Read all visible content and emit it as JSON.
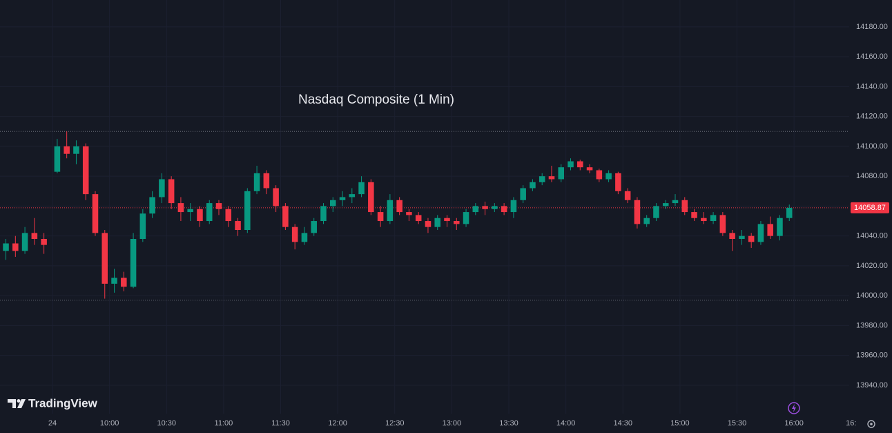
{
  "chart_data": {
    "type": "candlestick",
    "title": "Nasdaq Composite (1 Min)",
    "x": [
      545.5,
      550.5,
      555.5,
      560.5,
      565.5,
      572.5,
      577.5,
      582.5,
      587.5,
      592.5,
      597.5,
      602.5,
      607.5,
      612.5,
      617.5,
      622.5,
      627.5,
      632.5,
      637.5,
      642.5,
      647.5,
      652.5,
      657.5,
      662.5,
      667.5,
      672.5,
      677.5,
      682.5,
      687.5,
      692.5,
      697.5,
      702.5,
      707.5,
      712.5,
      717.5,
      722.5,
      727.5,
      732.5,
      737.5,
      742.5,
      747.5,
      752.5,
      757.5,
      762.5,
      767.5,
      772.5,
      777.5,
      782.5,
      787.5,
      792.5,
      797.5,
      802.5,
      807.5,
      812.5,
      817.5,
      822.5,
      827.5,
      832.5,
      837.5,
      842.5,
      847.5,
      852.5,
      857.5,
      862.5,
      867.5,
      872.5,
      877.5,
      882.5,
      887.5,
      892.5,
      897.5,
      902.5,
      907.5,
      912.5,
      917.5,
      922.5,
      927.5,
      932.5,
      937.5,
      942.5,
      947.5,
      952.5,
      957.5
    ],
    "open": [
      14030,
      14035,
      14030,
      14042,
      14038,
      14083,
      14100,
      14095,
      14100,
      14068,
      14042,
      14008,
      14012,
      14006,
      14038,
      14055,
      14066,
      14078,
      14062,
      14056,
      14058,
      14050,
      14062,
      14058,
      14050,
      14044,
      14070,
      14082,
      14072,
      14060,
      14046,
      14036,
      14042,
      14050,
      14060,
      14064,
      14066,
      14068,
      14076,
      14056,
      14050,
      14064,
      14056,
      14054,
      14050,
      14046,
      14052,
      14050,
      14048,
      14056,
      14060,
      14058,
      14060,
      14056,
      14064,
      14072,
      14076,
      14080,
      14078,
      14086,
      14090,
      14086,
      14084,
      14078,
      14082,
      14070,
      14064,
      14048,
      14052,
      14060,
      14062,
      14064,
      14056,
      14052,
      14050,
      14054,
      14042,
      14038,
      14040,
      14036,
      14048,
      14040,
      14052
    ],
    "high": [
      14038,
      14040,
      14046,
      14052,
      14042,
      14105,
      14110,
      14104,
      14102,
      14070,
      14044,
      14018,
      14016,
      14042,
      14058,
      14070,
      14082,
      14080,
      14066,
      14062,
      14060,
      14064,
      14064,
      14060,
      14052,
      14072,
      14087,
      14084,
      14074,
      14062,
      14048,
      14046,
      14052,
      14062,
      14066,
      14070,
      14072,
      14080,
      14078,
      14060,
      14068,
      14066,
      14058,
      14056,
      14052,
      14054,
      14054,
      14052,
      14058,
      14062,
      14063,
      14062,
      14062,
      14066,
      14074,
      14078,
      14082,
      14087,
      14088,
      14092,
      14091,
      14088,
      14085,
      14084,
      14083,
      14072,
      14066,
      14054,
      14062,
      14064,
      14068,
      14066,
      14058,
      14056,
      14056,
      14056,
      14044,
      14044,
      14042,
      14050,
      14053,
      14054,
      14061
    ],
    "low": [
      14024,
      14026,
      14028,
      14034,
      14028,
      14082,
      14092,
      14088,
      14064,
      14040,
      13998,
      14002,
      14003,
      14005,
      14036,
      14052,
      14062,
      14058,
      14050,
      14050,
      14046,
      14048,
      14054,
      14046,
      14040,
      14042,
      14068,
      14068,
      14056,
      14044,
      14031,
      14034,
      14040,
      14048,
      14056,
      14060,
      14062,
      14066,
      14054,
      14046,
      14048,
      14054,
      14050,
      14048,
      14042,
      14044,
      14046,
      14044,
      14046,
      14054,
      14054,
      14056,
      14054,
      14052,
      14062,
      14070,
      14074,
      14076,
      14076,
      14084,
      14084,
      14082,
      14076,
      14076,
      14068,
      14062,
      14045,
      14046,
      14050,
      14058,
      14060,
      14054,
      14050,
      14048,
      14048,
      14040,
      14030,
      14034,
      14032,
      14034,
      14038,
      14037,
      14050
    ],
    "close": [
      14035,
      14030,
      14042,
      14038,
      14034,
      14100,
      14095,
      14100,
      14068,
      14042,
      14008,
      14012,
      14006,
      14038,
      14055,
      14066,
      14078,
      14062,
      14056,
      14058,
      14050,
      14062,
      14058,
      14050,
      14044,
      14070,
      14082,
      14072,
      14060,
      14046,
      14036,
      14042,
      14050,
      14060,
      14064,
      14066,
      14068,
      14076,
      14056,
      14050,
      14064,
      14056,
      14054,
      14050,
      14046,
      14052,
      14050,
      14048,
      14056,
      14060,
      14058,
      14060,
      14056,
      14064,
      14072,
      14076,
      14080,
      14078,
      14086,
      14090,
      14086,
      14084,
      14078,
      14082,
      14070,
      14064,
      14048,
      14052,
      14060,
      14062,
      14064,
      14056,
      14052,
      14050,
      14054,
      14042,
      14038,
      14040,
      14036,
      14048,
      14040,
      14052,
      14058.87
    ],
    "up_color": "#089981",
    "down_color": "#f23645",
    "xlim": [
      542.4,
      989
    ],
    "xticks": [
      {
        "value": 570,
        "label": "24"
      },
      {
        "value": 600,
        "label": "10:00"
      },
      {
        "value": 630,
        "label": "10:30"
      },
      {
        "value": 660,
        "label": "11:00"
      },
      {
        "value": 690,
        "label": "11:30"
      },
      {
        "value": 720,
        "label": "12:00"
      },
      {
        "value": 750,
        "label": "12:30"
      },
      {
        "value": 780,
        "label": "13:00"
      },
      {
        "value": 810,
        "label": "13:30"
      },
      {
        "value": 840,
        "label": "14:00"
      },
      {
        "value": 870,
        "label": "14:30"
      },
      {
        "value": 900,
        "label": "15:00"
      },
      {
        "value": 930,
        "label": "15:30"
      },
      {
        "value": 960,
        "label": "16:00"
      },
      {
        "value": 990,
        "label": "16:"
      }
    ],
    "ylim": [
      13921,
      14198
    ],
    "yticks": [
      {
        "value": 13940,
        "label": "13940.00"
      },
      {
        "value": 13960,
        "label": "13960.00"
      },
      {
        "value": 13980,
        "label": "13980.00"
      },
      {
        "value": 14000,
        "label": "14000.00"
      },
      {
        "value": 14020,
        "label": "14020.00"
      },
      {
        "value": 14040,
        "label": "14040.00"
      },
      {
        "value": 14060,
        "label": "14060.00"
      },
      {
        "value": 14080,
        "label": "14080.00"
      },
      {
        "value": 14100,
        "label": "14100.00"
      },
      {
        "value": 14120,
        "label": "14120.00"
      },
      {
        "value": 14140,
        "label": "14140.00"
      },
      {
        "value": 14160,
        "label": "14160.00"
      },
      {
        "value": 14180,
        "label": "14180.00"
      }
    ],
    "levels": [
      14110,
      13997
    ],
    "last_price": 14058.87,
    "grid": true
  },
  "branding": "TradingView"
}
